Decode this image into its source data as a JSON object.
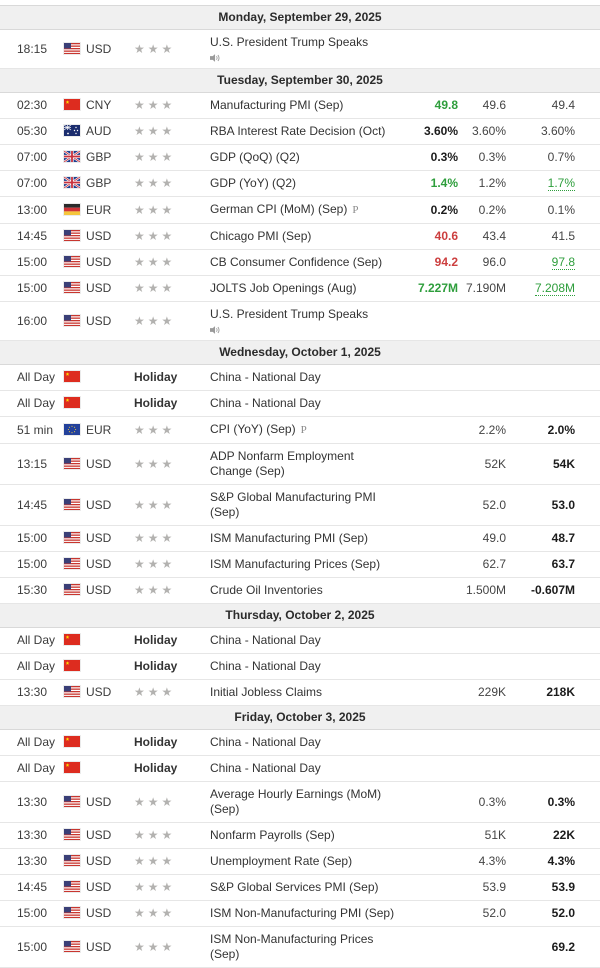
{
  "colors": {
    "positive_green": "#2e9e3c",
    "negative_red": "#cc3e3e",
    "bold_value": "#1c1c1c",
    "star_gray": "#b3b2b0",
    "day_header_bg": "#f0f0f0",
    "row_border": "#e6e6e6",
    "text": "#333333"
  },
  "icons": {
    "importance_star": "★",
    "speech": "speaker-icon",
    "preliminary_marker": "P"
  },
  "labels": {
    "holiday": "Holiday",
    "all_day": "All Day"
  },
  "calendar": {
    "days": [
      {
        "date": "Monday, September 29, 2025",
        "events": [
          {
            "time": "18:15",
            "flag": "us",
            "currency": "USD",
            "stars": 3,
            "event": "U.S. President Trump Speaks",
            "speech": true
          }
        ]
      },
      {
        "date": "Tuesday, September 30, 2025",
        "events": [
          {
            "time": "02:30",
            "flag": "cn",
            "currency": "CNY",
            "stars": 3,
            "event": "Manufacturing PMI (Sep)",
            "actual": "49.8",
            "actual_color": "green",
            "forecast": "49.6",
            "previous": "49.4",
            "previous_style": "normal"
          },
          {
            "time": "05:30",
            "flag": "au",
            "currency": "AUD",
            "stars": 3,
            "event": "RBA Interest Rate Decision (Oct)",
            "actual": "3.60%",
            "actual_color": "black",
            "forecast": "3.60%",
            "previous": "3.60%",
            "previous_style": "normal"
          },
          {
            "time": "07:00",
            "flag": "gb",
            "currency": "GBP",
            "stars": 3,
            "event": "GDP (QoQ) (Q2)",
            "actual": "0.3%",
            "actual_color": "black",
            "forecast": "0.3%",
            "previous": "0.7%",
            "previous_style": "normal"
          },
          {
            "time": "07:00",
            "flag": "gb",
            "currency": "GBP",
            "stars": 3,
            "event": "GDP (YoY) (Q2)",
            "actual": "1.4%",
            "actual_color": "green",
            "forecast": "1.2%",
            "previous": "1.7%",
            "previous_style": "revised"
          },
          {
            "time": "13:00",
            "flag": "de",
            "currency": "EUR",
            "stars": 3,
            "event": "German CPI (MoM) (Sep)",
            "marker": "P",
            "actual": "0.2%",
            "actual_color": "black",
            "forecast": "0.2%",
            "previous": "0.1%",
            "previous_style": "normal"
          },
          {
            "time": "14:45",
            "flag": "us",
            "currency": "USD",
            "stars": 3,
            "event": "Chicago PMI (Sep)",
            "actual": "40.6",
            "actual_color": "red",
            "forecast": "43.4",
            "previous": "41.5",
            "previous_style": "normal"
          },
          {
            "time": "15:00",
            "flag": "us",
            "currency": "USD",
            "stars": 3,
            "event": "CB Consumer Confidence (Sep)",
            "actual": "94.2",
            "actual_color": "red",
            "forecast": "96.0",
            "previous": "97.8",
            "previous_style": "revised"
          },
          {
            "time": "15:00",
            "flag": "us",
            "currency": "USD",
            "stars": 3,
            "event": "JOLTS Job Openings (Aug)",
            "actual": "7.227M",
            "actual_color": "green",
            "forecast": "7.190M",
            "previous": "7.208M",
            "previous_style": "revised"
          },
          {
            "time": "16:00",
            "flag": "us",
            "currency": "USD",
            "stars": 3,
            "event": "U.S. President Trump Speaks",
            "speech": true
          }
        ]
      },
      {
        "date": "Wednesday, October 1, 2025",
        "events": [
          {
            "time": "All Day",
            "flag": "cn",
            "holiday": true,
            "event": "China - National Day"
          },
          {
            "time": "All Day",
            "flag": "cn",
            "holiday": true,
            "event": "China - National Day"
          },
          {
            "time": "51 min",
            "flag": "eu",
            "currency": "EUR",
            "stars": 3,
            "event": "CPI (YoY) (Sep)",
            "marker": "P",
            "forecast": "2.2%",
            "previous": "2.0%",
            "previous_style": "bold"
          },
          {
            "time": "13:15",
            "flag": "us",
            "currency": "USD",
            "stars": 3,
            "event": "ADP Nonfarm Employment Change (Sep)",
            "forecast": "52K",
            "previous": "54K",
            "previous_style": "bold"
          },
          {
            "time": "14:45",
            "flag": "us",
            "currency": "USD",
            "stars": 3,
            "event": "S&P Global Manufacturing PMI (Sep)",
            "forecast": "52.0",
            "previous": "53.0",
            "previous_style": "bold"
          },
          {
            "time": "15:00",
            "flag": "us",
            "currency": "USD",
            "stars": 3,
            "event": "ISM Manufacturing PMI (Sep)",
            "forecast": "49.0",
            "previous": "48.7",
            "previous_style": "bold"
          },
          {
            "time": "15:00",
            "flag": "us",
            "currency": "USD",
            "stars": 3,
            "event": "ISM Manufacturing Prices (Sep)",
            "forecast": "62.7",
            "previous": "63.7",
            "previous_style": "bold"
          },
          {
            "time": "15:30",
            "flag": "us",
            "currency": "USD",
            "stars": 3,
            "event": "Crude Oil Inventories",
            "forecast": "1.500M",
            "previous": "-0.607M",
            "previous_style": "bold"
          }
        ]
      },
      {
        "date": "Thursday, October 2, 2025",
        "events": [
          {
            "time": "All Day",
            "flag": "cn",
            "holiday": true,
            "event": "China - National Day"
          },
          {
            "time": "All Day",
            "flag": "cn",
            "holiday": true,
            "event": "China - National Day"
          },
          {
            "time": "13:30",
            "flag": "us",
            "currency": "USD",
            "stars": 3,
            "event": "Initial Jobless Claims",
            "forecast": "229K",
            "previous": "218K",
            "previous_style": "bold"
          }
        ]
      },
      {
        "date": "Friday, October 3, 2025",
        "events": [
          {
            "time": "All Day",
            "flag": "cn",
            "holiday": true,
            "event": "China - National Day"
          },
          {
            "time": "All Day",
            "flag": "cn",
            "holiday": true,
            "event": "China - National Day"
          },
          {
            "time": "13:30",
            "flag": "us",
            "currency": "USD",
            "stars": 3,
            "event": "Average Hourly Earnings (MoM) (Sep)",
            "forecast": "0.3%",
            "previous": "0.3%",
            "previous_style": "bold"
          },
          {
            "time": "13:30",
            "flag": "us",
            "currency": "USD",
            "stars": 3,
            "event": "Nonfarm Payrolls (Sep)",
            "forecast": "51K",
            "previous": "22K",
            "previous_style": "bold"
          },
          {
            "time": "13:30",
            "flag": "us",
            "currency": "USD",
            "stars": 3,
            "event": "Unemployment Rate (Sep)",
            "forecast": "4.3%",
            "previous": "4.3%",
            "previous_style": "bold"
          },
          {
            "time": "14:45",
            "flag": "us",
            "currency": "USD",
            "stars": 3,
            "event": "S&P Global Services PMI (Sep)",
            "forecast": "53.9",
            "previous": "53.9",
            "previous_style": "bold"
          },
          {
            "time": "15:00",
            "flag": "us",
            "currency": "USD",
            "stars": 3,
            "event": "ISM Non-Manufacturing PMI (Sep)",
            "forecast": "52.0",
            "previous": "52.0",
            "previous_style": "bold"
          },
          {
            "time": "15:00",
            "flag": "us",
            "currency": "USD",
            "stars": 3,
            "event": "ISM Non-Manufacturing Prices (Sep)",
            "previous": "69.2",
            "previous_style": "bold"
          }
        ]
      }
    ]
  }
}
